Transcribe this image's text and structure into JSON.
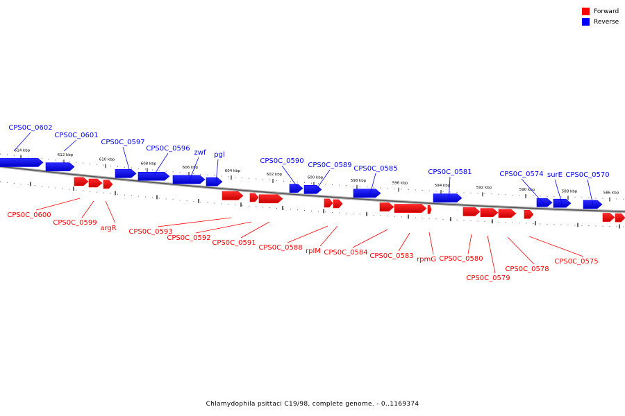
{
  "legend": {
    "forward_label": "Forward",
    "reverse_label": "Reverse",
    "forward_color": "#ff0000",
    "reverse_color": "#0000ff"
  },
  "caption": "Chlamydophila psittaci C19/98, complete genome. - 0..1169374",
  "ticks": [
    "614 kbp",
    "612 kbp",
    "610 kbp",
    "608 kbp",
    "606 kbp",
    "604 kbp",
    "602 kbp",
    "600 kbp",
    "598 kbp",
    "596 kbp",
    "594 kbp",
    "592 kbp",
    "590 kbp",
    "588 kbp",
    "586 kbp"
  ],
  "reverse_genes": [
    "CPS0C_0602",
    "CPS0C_0601",
    "CPS0C_0597",
    "CPS0C_0596",
    "zwf",
    "pgl",
    "CPS0C_0590",
    "CPS0C_0589",
    "CPS0C_0585",
    "CPS0C_0581",
    "CPS0C_0574",
    "surE",
    "CPS0C_0570"
  ],
  "forward_genes": [
    "CPS0C_0600",
    "CPS0C_0599",
    "argR",
    "CPS0C_0593",
    "CPS0C_0592",
    "CPS0C_0591",
    "CPS0C_0588",
    "rplM",
    "CPS0C_0584",
    "CPS0C_0583",
    "rpmG",
    "CPS0C_0580",
    "CPS0C_0579",
    "CPS0C_0578",
    "CPS0C_0575"
  ]
}
